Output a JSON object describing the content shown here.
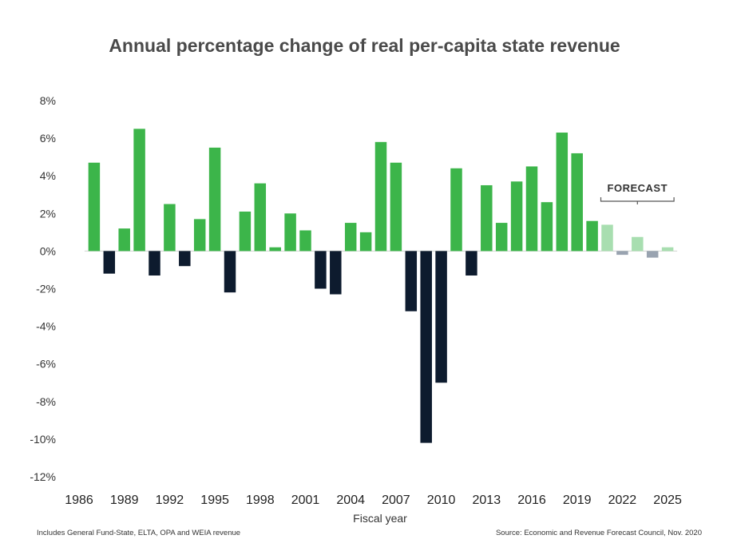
{
  "chart_data": {
    "type": "bar",
    "title": "Annual percentage change of real per-capita state revenue",
    "xlabel": "Fiscal year",
    "ylabel": "",
    "ylim": [
      -12,
      8
    ],
    "y_ticks": [
      8,
      6,
      4,
      2,
      0,
      -2,
      -4,
      -6,
      -8,
      -10,
      -12
    ],
    "y_tick_labels": [
      "8%",
      "6%",
      "4%",
      "2%",
      "0%",
      "-2%",
      "-4%",
      "-6%",
      "-8%",
      "-10%",
      "-12%"
    ],
    "x_tick_labels": [
      "1986",
      "1989",
      "1992",
      "1995",
      "1998",
      "2001",
      "2004",
      "2007",
      "2010",
      "2013",
      "2016",
      "2019",
      "2022",
      "2025"
    ],
    "x_tick_years": [
      1986,
      1989,
      1992,
      1995,
      1998,
      2001,
      2004,
      2007,
      2010,
      2013,
      2016,
      2019,
      2022,
      2025
    ],
    "years": [
      1987,
      1988,
      1989,
      1990,
      1991,
      1992,
      1993,
      1994,
      1995,
      1996,
      1997,
      1998,
      1999,
      2000,
      2001,
      2002,
      2003,
      2004,
      2005,
      2006,
      2007,
      2008,
      2009,
      2010,
      2011,
      2012,
      2013,
      2014,
      2015,
      2016,
      2017,
      2018,
      2019,
      2020,
      2021,
      2022,
      2023,
      2024,
      2025
    ],
    "values": [
      4.7,
      -1.2,
      1.2,
      6.5,
      -1.3,
      2.5,
      -0.8,
      1.7,
      5.5,
      -2.2,
      2.1,
      3.6,
      0.2,
      2.0,
      1.1,
      -2.0,
      -2.3,
      1.5,
      1.0,
      5.8,
      4.7,
      -3.2,
      -10.2,
      -7.0,
      4.4,
      -1.3,
      3.5,
      1.5,
      3.7,
      4.5,
      2.6,
      6.3,
      5.2,
      1.6,
      1.4,
      -0.2,
      0.75,
      -0.35,
      0.2
    ],
    "forecast_start_year": 2021,
    "forecast_label": "FORECAST",
    "colors": {
      "positive": "#3cb54a",
      "negative": "#0d1b2e",
      "forecast_positive": "#a8deb0",
      "forecast_negative": "#99a3b0"
    },
    "grid": false
  },
  "notes": {
    "left": "Includes General Fund-State, ELTA, OPA and WEIA revenue",
    "right": "Source: Economic and Revenue Forecast Council, Nov. 2020"
  }
}
